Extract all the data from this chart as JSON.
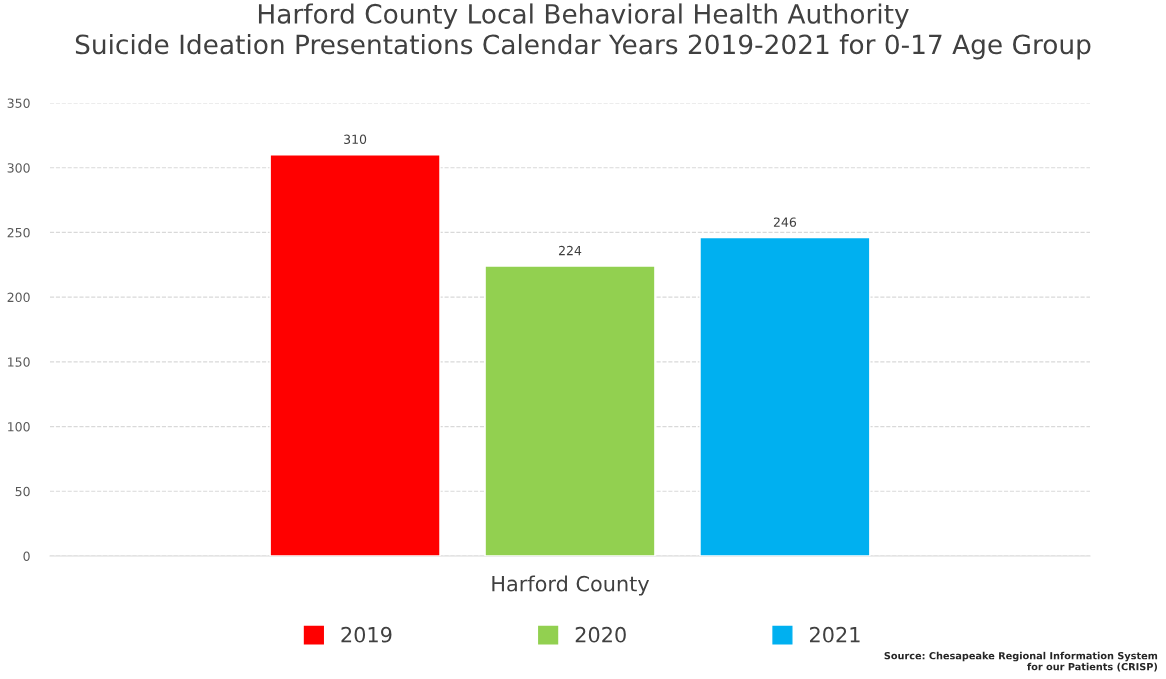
{
  "chart_data": {
    "type": "bar",
    "title": "Harford County Local Behavioral Health Authority\nSuicide Ideation Presentations Calendar Years 2019-2021 for 0-17 Age Group",
    "categories": [
      "Harford County"
    ],
    "series": [
      {
        "name": "2019",
        "color": "#ff0000",
        "values": [
          310
        ]
      },
      {
        "name": "2020",
        "color": "#92d050",
        "values": [
          224
        ]
      },
      {
        "name": "2021",
        "color": "#00b0f0",
        "values": [
          246
        ]
      }
    ],
    "ylim": [
      0,
      350
    ],
    "yticks": [
      0,
      50,
      100,
      150,
      200,
      250,
      300,
      350
    ],
    "grid": "y",
    "legend": "bottom",
    "data_labels": true,
    "annotations": [
      "Source: Chesapeake Regional Information System\nfor our Patients (CRISP)"
    ]
  }
}
